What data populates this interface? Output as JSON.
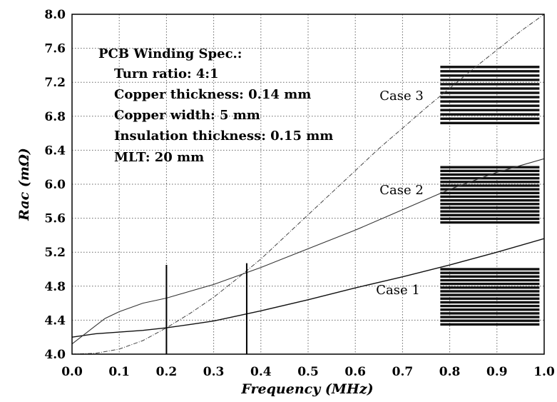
{
  "chart_data": {
    "type": "line",
    "xlabel": "Frequency (MHz)",
    "ylabel": "Rac (mΩ)",
    "xlim": [
      0.0,
      1.0
    ],
    "ylim": [
      4.0,
      8.0
    ],
    "x_ticks": [
      "0.0",
      "0.1",
      "0.2",
      "0.3",
      "0.4",
      "0.5",
      "0.6",
      "0.7",
      "0.8",
      "0.9",
      "1.0"
    ],
    "y_ticks": [
      "4.0",
      "4.4",
      "4.8",
      "5.2",
      "5.6",
      "6.0",
      "6.4",
      "6.8",
      "7.2",
      "7.6",
      "8.0"
    ],
    "x_tick_values": [
      0.0,
      0.1,
      0.2,
      0.3,
      0.4,
      0.5,
      0.6,
      0.7,
      0.8,
      0.9,
      1.0
    ],
    "y_tick_values": [
      4.0,
      4.4,
      4.8,
      5.2,
      5.6,
      6.0,
      6.4,
      6.8,
      7.2,
      7.6,
      8.0
    ],
    "grid": true,
    "series": [
      {
        "name": "Case 1",
        "x": [
          0.0,
          0.05,
          0.1,
          0.15,
          0.2,
          0.25,
          0.3,
          0.35,
          0.4,
          0.5,
          0.6,
          0.7,
          0.8,
          0.9,
          1.0
        ],
        "y": [
          4.2,
          4.24,
          4.26,
          4.28,
          4.31,
          4.35,
          4.39,
          4.45,
          4.51,
          4.64,
          4.78,
          4.91,
          5.05,
          5.2,
          5.36
        ]
      },
      {
        "name": "Case 2",
        "x": [
          0.0,
          0.03,
          0.07,
          0.1,
          0.15,
          0.2,
          0.25,
          0.3,
          0.35,
          0.4,
          0.5,
          0.6,
          0.7,
          0.8,
          0.9,
          1.0
        ],
        "y": [
          4.12,
          4.25,
          4.42,
          4.5,
          4.6,
          4.66,
          4.74,
          4.82,
          4.92,
          5.02,
          5.24,
          5.46,
          5.7,
          5.94,
          6.14,
          6.3
        ]
      },
      {
        "name": "Case 3",
        "x": [
          0.0,
          0.05,
          0.1,
          0.15,
          0.2,
          0.25,
          0.3,
          0.35,
          0.4,
          0.45,
          0.5,
          0.55,
          0.6,
          0.65,
          0.7,
          0.75,
          0.8,
          0.85,
          0.9,
          0.95,
          1.0
        ],
        "y": [
          4.0,
          4.01,
          4.06,
          4.16,
          4.31,
          4.48,
          4.67,
          4.89,
          5.12,
          5.38,
          5.64,
          5.9,
          6.16,
          6.42,
          6.66,
          6.9,
          7.13,
          7.36,
          7.58,
          7.8,
          8.0
        ]
      }
    ],
    "markers": [
      {
        "x": 0.2,
        "y_from": 4.0,
        "y_to": 5.05
      },
      {
        "x": 0.37,
        "y_from": 4.0,
        "y_to": 5.07
      }
    ],
    "spec_box": {
      "title": "PCB Winding Spec.:",
      "lines": [
        "Turn ratio: 4:1",
        "Copper thickness: 0.14 mm",
        "Copper width: 5 mm",
        "Insulation thickness: 0.15 mm",
        "MLT: 20 mm"
      ]
    },
    "winding_stacks": [
      {
        "label": "Case 1",
        "y_top": 5.0,
        "y_bottom": 4.35,
        "layers": 16
      },
      {
        "label": "Case 2",
        "y_top": 6.2,
        "y_bottom": 5.55,
        "layers": 16
      },
      {
        "label": "Case 3",
        "y_top": 7.38,
        "y_bottom": 6.72,
        "layers": 14
      }
    ],
    "winding_x_range": [
      0.78,
      0.99
    ]
  }
}
